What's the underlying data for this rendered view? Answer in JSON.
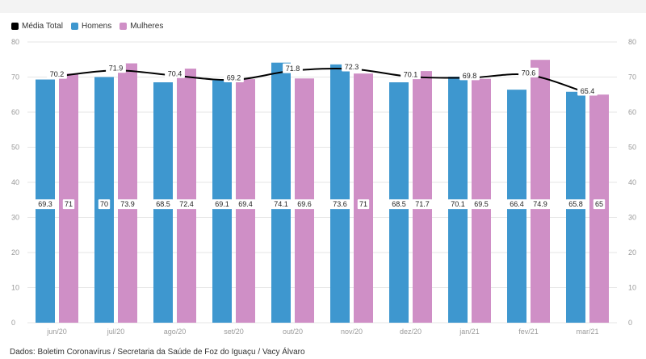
{
  "legend": {
    "items": [
      {
        "label": "Média Total",
        "color": "#000000"
      },
      {
        "label": "Homens",
        "color": "#3e97cf"
      },
      {
        "label": "Mulheres",
        "color": "#cf8fc6"
      }
    ]
  },
  "source": "Dados: Boletim Coronavírus / Secretaria da Saúde de Foz do Iguaçu / Vacy Álvaro",
  "chart_data": {
    "type": "bar",
    "categories": [
      "jun/20",
      "jul/20",
      "ago/20",
      "set/20",
      "out/20",
      "nov/20",
      "dez/20",
      "jan/21",
      "fev/21",
      "mar/21"
    ],
    "series": [
      {
        "name": "Homens",
        "type": "bar",
        "color": "#3e97cf",
        "values": [
          69.3,
          70,
          68.5,
          69.1,
          74.1,
          73.6,
          68.5,
          70.1,
          66.4,
          65.8
        ]
      },
      {
        "name": "Mulheres",
        "type": "bar",
        "color": "#cf8fc6",
        "values": [
          71,
          73.9,
          72.4,
          69.4,
          69.6,
          71,
          71.7,
          69.5,
          74.9,
          65
        ]
      },
      {
        "name": "Média Total",
        "type": "line",
        "color": "#000000",
        "values": [
          70.2,
          71.9,
          70.4,
          69.2,
          71.8,
          72.3,
          70.1,
          69.8,
          70.6,
          65.4
        ]
      }
    ],
    "ylim": [
      0,
      80
    ],
    "yticks": [
      0,
      10,
      20,
      30,
      40,
      50,
      60,
      70,
      80
    ],
    "y_axis_left_ticks": [
      0,
      10,
      20,
      30,
      40,
      50,
      60,
      70,
      80
    ],
    "y_axis_right_ticks": [
      0,
      10,
      20,
      30,
      40,
      50,
      60,
      70,
      80
    ],
    "grid": true,
    "legend_position": "top-left"
  }
}
